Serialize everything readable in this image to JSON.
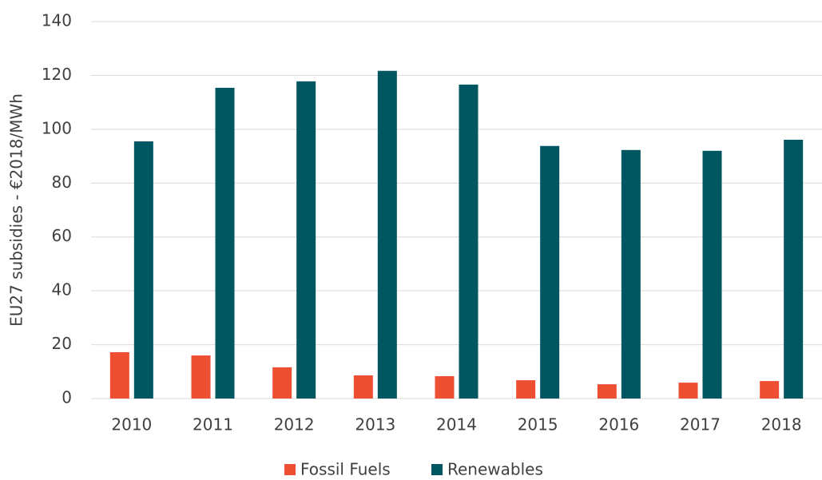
{
  "chart_data": {
    "type": "bar",
    "ylabel": "EU27 subsidies - €2018/MWh",
    "categories": [
      "2010",
      "2011",
      "2012",
      "2013",
      "2014",
      "2015",
      "2016",
      "2017",
      "2018"
    ],
    "series": [
      {
        "name": "Fossil Fuels",
        "color": "#ee4e31",
        "values": [
          17.2,
          16,
          11.6,
          8.6,
          8.3,
          6.8,
          5.3,
          5.9,
          6.5
        ]
      },
      {
        "name": "Renewables",
        "color": "#005661",
        "values": [
          95.5,
          115.4,
          117.8,
          121.7,
          116.6,
          93.8,
          92.3,
          92,
          96.1
        ]
      }
    ],
    "ylim": [
      0,
      140
    ],
    "yticks": [
      0,
      20,
      40,
      60,
      80,
      100,
      120,
      140
    ],
    "grid": true,
    "legend": "bottom"
  }
}
